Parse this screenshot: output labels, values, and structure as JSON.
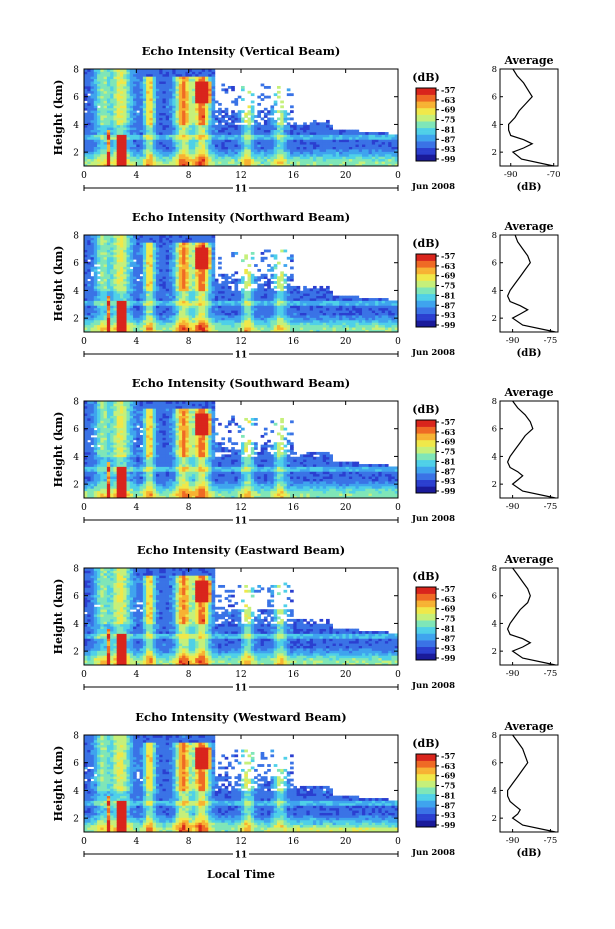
{
  "x_axis_label": "Local Time",
  "date_label": "Jun 2008",
  "colorbar_unit": "(dB)",
  "colorbar_ticks": [
    "-57",
    "-63",
    "-69",
    "-75",
    "-81",
    "-87",
    "-93",
    "-99"
  ],
  "average_title": "Average",
  "average_xlabel": "(dB)",
  "height_label": "Height (km)",
  "colors": {
    "scale": [
      "#1a1a9a",
      "#2b3fd0",
      "#3a73e6",
      "#3fa4ee",
      "#4fd0e8",
      "#7fe6b8",
      "#c6f07a",
      "#f0e84a",
      "#f7b233",
      "#ef6a25",
      "#d9251c"
    ]
  },
  "chart_data": [
    {
      "type": "heatmap",
      "title": "Echo Intensity (Vertical Beam)",
      "xlabel": "",
      "ylabel": "Height (km)",
      "x_ticks": [
        "0",
        "4",
        "8",
        "12",
        "16",
        "20",
        "0"
      ],
      "x_sub_label": "11",
      "y_ticks": [
        "2",
        "4",
        "6",
        "8"
      ],
      "ylim": [
        1,
        8
      ],
      "xlim": [
        0,
        24
      ],
      "color_range_db": [
        -99,
        -57
      ],
      "average_profile": {
        "xlabel": "(dB)",
        "x_ticks": [
          "-90",
          "-70"
        ],
        "xlim": [
          -95,
          -68
        ],
        "heights": [
          1.0,
          1.5,
          2.0,
          2.3,
          2.6,
          2.9,
          3.2,
          3.6,
          4.0,
          4.5,
          5.0,
          5.5,
          6.0,
          6.5,
          7.0,
          7.5,
          8.0
        ],
        "values": [
          -70,
          -85,
          -89,
          -84,
          -80,
          -84,
          -90,
          -91,
          -91,
          -88,
          -86,
          -83,
          -80,
          -82,
          -84,
          -87,
          -89
        ]
      }
    },
    {
      "type": "heatmap",
      "title": "Echo Intensity (Northward Beam)",
      "xlabel": "",
      "ylabel": "Height (km)",
      "x_ticks": [
        "0",
        "4",
        "8",
        "12",
        "16",
        "20",
        "0"
      ],
      "x_sub_label": "11",
      "y_ticks": [
        "2",
        "4",
        "6",
        "8"
      ],
      "ylim": [
        1,
        8
      ],
      "xlim": [
        0,
        24
      ],
      "color_range_db": [
        -99,
        -57
      ],
      "average_profile": {
        "xlabel": "(dB)",
        "x_ticks": [
          "-90",
          "-75"
        ],
        "xlim": [
          -95,
          -72
        ],
        "heights": [
          1.0,
          1.5,
          2.0,
          2.3,
          2.6,
          2.9,
          3.2,
          3.6,
          4.0,
          4.5,
          5.0,
          5.5,
          6.0,
          6.5,
          7.0,
          7.5,
          8.0
        ],
        "values": [
          -73,
          -86,
          -90,
          -87,
          -84,
          -87,
          -91,
          -92,
          -91,
          -89,
          -87,
          -85,
          -83,
          -84,
          -86,
          -88,
          -89
        ]
      }
    },
    {
      "type": "heatmap",
      "title": "Echo Intensity (Southward Beam)",
      "xlabel": "",
      "ylabel": "Height (km)",
      "x_ticks": [
        "0",
        "4",
        "8",
        "12",
        "16",
        "20",
        "0"
      ],
      "x_sub_label": "11",
      "y_ticks": [
        "2",
        "4",
        "6",
        "8"
      ],
      "ylim": [
        1,
        8
      ],
      "xlim": [
        0,
        24
      ],
      "color_range_db": [
        -99,
        -57
      ],
      "average_profile": {
        "xlabel": "",
        "x_ticks": [
          "-90",
          "-75"
        ],
        "xlim": [
          -95,
          -72
        ],
        "heights": [
          1.0,
          1.5,
          2.0,
          2.3,
          2.6,
          2.9,
          3.2,
          3.6,
          4.0,
          4.5,
          5.0,
          5.5,
          6.0,
          6.5,
          7.0,
          7.5,
          8.0
        ],
        "values": [
          -73,
          -86,
          -90,
          -88,
          -86,
          -88,
          -91,
          -92,
          -91,
          -89,
          -87,
          -85,
          -82,
          -83,
          -85,
          -88,
          -90
        ]
      }
    },
    {
      "type": "heatmap",
      "title": "Echo Intensity (Eastward Beam)",
      "xlabel": "",
      "ylabel": "Height (km)",
      "x_ticks": [
        "0",
        "4",
        "8",
        "12",
        "16",
        "20",
        "0"
      ],
      "x_sub_label": "11",
      "y_ticks": [
        "2",
        "4",
        "6",
        "8"
      ],
      "ylim": [
        1,
        8
      ],
      "xlim": [
        0,
        24
      ],
      "color_range_db": [
        -99,
        -57
      ],
      "average_profile": {
        "xlabel": "",
        "x_ticks": [
          "-90",
          "-75"
        ],
        "xlim": [
          -95,
          -72
        ],
        "heights": [
          1.0,
          1.5,
          2.0,
          2.3,
          2.6,
          2.9,
          3.2,
          3.6,
          4.0,
          4.5,
          5.0,
          5.5,
          6.0,
          6.5,
          7.0,
          7.5,
          8.0
        ],
        "values": [
          -73,
          -86,
          -90,
          -86,
          -83,
          -86,
          -91,
          -92,
          -91,
          -89,
          -87,
          -84,
          -83,
          -84,
          -86,
          -88,
          -90
        ]
      }
    },
    {
      "type": "heatmap",
      "title": "Echo Intensity (Westward Beam)",
      "xlabel": "Local Time",
      "ylabel": "Height (km)",
      "x_ticks": [
        "0",
        "4",
        "8",
        "12",
        "16",
        "20",
        "0"
      ],
      "x_sub_label": "11",
      "y_ticks": [
        "2",
        "4",
        "6",
        "8"
      ],
      "ylim": [
        1,
        8
      ],
      "xlim": [
        0,
        24
      ],
      "color_range_db": [
        -99,
        -57
      ],
      "average_profile": {
        "xlabel": "(dB)",
        "x_ticks": [
          "-90",
          "-75"
        ],
        "xlim": [
          -95,
          -72
        ],
        "heights": [
          1.0,
          1.5,
          2.0,
          2.3,
          2.6,
          2.9,
          3.2,
          3.6,
          4.0,
          4.5,
          5.0,
          5.5,
          6.0,
          6.5,
          7.0,
          7.5,
          8.0
        ],
        "values": [
          -73,
          -86,
          -90,
          -88,
          -87,
          -89,
          -91,
          -92,
          -92,
          -90,
          -88,
          -86,
          -84,
          -85,
          -86,
          -88,
          -90
        ]
      }
    }
  ]
}
